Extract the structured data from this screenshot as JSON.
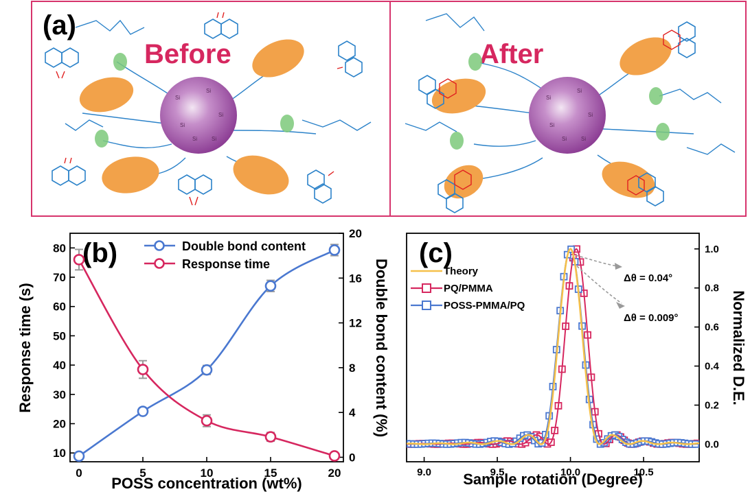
{
  "panel_a": {
    "label": "(a)",
    "before_label": "Before",
    "after_label": "After",
    "colors": {
      "border": "#d6336c",
      "sphere": "#a14aa8",
      "ellipse": "#f2a24a",
      "group": "#7cc97a",
      "bond": "#2b82c9",
      "oxygen": "#e02020"
    }
  },
  "chart_data": [
    {
      "panel": "(b)",
      "type": "line",
      "xlabel": "POSS  concentration (wt%)",
      "ylabel_left": "Response time (s)",
      "ylabel_right": "Double bond content (%)",
      "x": [
        0,
        5,
        10,
        15,
        20
      ],
      "xlim": [
        -0.7,
        20.7
      ],
      "ylim_left": [
        7,
        85
      ],
      "ylim_right": [
        -0.4,
        20
      ],
      "x_ticks": [
        "0",
        "5",
        "10",
        "15",
        "20"
      ],
      "y_ticks_left": [
        "10",
        "20",
        "30",
        "40",
        "50",
        "60",
        "70",
        "80"
      ],
      "y_ticks_right": [
        "0",
        "4",
        "8",
        "12",
        "16",
        "20"
      ],
      "legend_position": "top-right",
      "series": [
        {
          "name": "Double bond content",
          "axis": "right",
          "color": "#4a78d0",
          "values": [
            0.1,
            4.1,
            7.8,
            15.3,
            18.5
          ],
          "errors": [
            0.2,
            0.3,
            0.4,
            0.5,
            0.5
          ]
        },
        {
          "name": "Response time",
          "axis": "left",
          "color": "#d6275f",
          "values": [
            76,
            38.5,
            21,
            15.5,
            9
          ],
          "errors": [
            3.5,
            3.0,
            2.0,
            1.5,
            1.0
          ]
        }
      ]
    },
    {
      "panel": "(c)",
      "type": "line",
      "xlabel": "Sample rotation (Degree)",
      "ylabel_right": "Normalized D.E.",
      "xlim": [
        8.88,
        10.88
      ],
      "ylim": [
        -0.09,
        1.08
      ],
      "x_ticks": [
        "9.0",
        "9.5",
        "10.0",
        "10.5"
      ],
      "y_ticks_right": [
        "0.0",
        "0.2",
        "0.4",
        "0.6",
        "0.8",
        "1.0"
      ],
      "legend_position": "top-left",
      "series": [
        {
          "name": "Theory",
          "color": "#f5c04a",
          "center": 10.0
        },
        {
          "name": "PQ/PMMA",
          "color": "#d6275f",
          "center": 10.04
        },
        {
          "name": "POSS-PMMA/PQ",
          "color": "#4a78d0",
          "center": 10.0
        }
      ],
      "annotations": [
        "Δθ = 0.04°",
        "Δθ = 0.009°"
      ]
    }
  ]
}
